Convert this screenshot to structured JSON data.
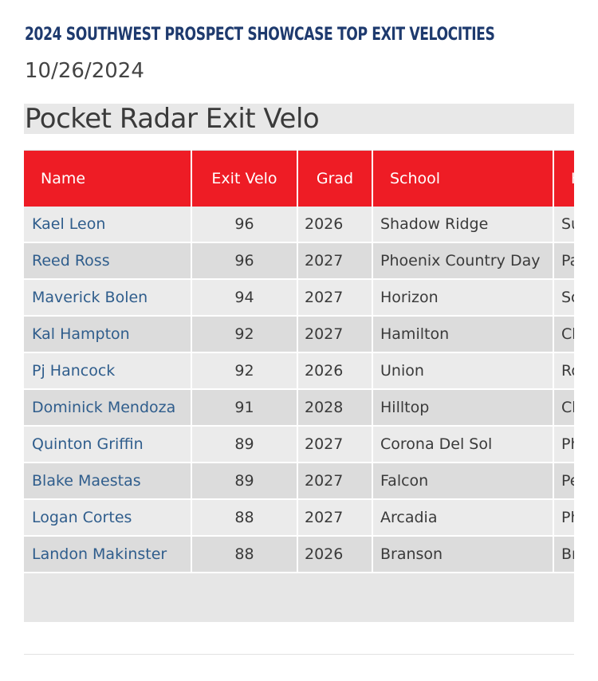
{
  "header": {
    "title": "2024 SOUTHWEST PROSPECT SHOWCASE TOP EXIT VELOCITIES",
    "date": "10/26/2024"
  },
  "section": {
    "title": "Pocket Radar Exit Velo"
  },
  "table": {
    "columns": [
      "Name",
      "Exit Velo",
      "Grad",
      "School",
      "H"
    ],
    "rows": [
      {
        "name": "Kael Leon",
        "velo": "96",
        "grad": "2026",
        "school": "Shadow Ridge",
        "hs": "Su"
      },
      {
        "name": "Reed Ross",
        "velo": "96",
        "grad": "2027",
        "school": "Phoenix Country Day",
        "hs": "Pa"
      },
      {
        "name": "Maverick Bolen",
        "velo": "94",
        "grad": "2027",
        "school": "Horizon",
        "hs": "Sc"
      },
      {
        "name": "Kal Hampton",
        "velo": "92",
        "grad": "2027",
        "school": "Hamilton",
        "hs": "Ch"
      },
      {
        "name": "Pj Hancock",
        "velo": "92",
        "grad": "2026",
        "school": "Union",
        "hs": "Ro"
      },
      {
        "name": "Dominick Mendoza",
        "velo": "91",
        "grad": "2028",
        "school": "Hilltop",
        "hs": "Ch"
      },
      {
        "name": "Quinton Griffin",
        "velo": "89",
        "grad": "2027",
        "school": "Corona Del Sol",
        "hs": "Ph"
      },
      {
        "name": "Blake Maestas",
        "velo": "89",
        "grad": "2027",
        "school": "Falcon",
        "hs": "Pe"
      },
      {
        "name": "Logan Cortes",
        "velo": "88",
        "grad": "2027",
        "school": "Arcadia",
        "hs": "Ph"
      },
      {
        "name": "Landon Makinster",
        "velo": "88",
        "grad": "2026",
        "school": "Branson",
        "hs": "Br"
      }
    ]
  }
}
